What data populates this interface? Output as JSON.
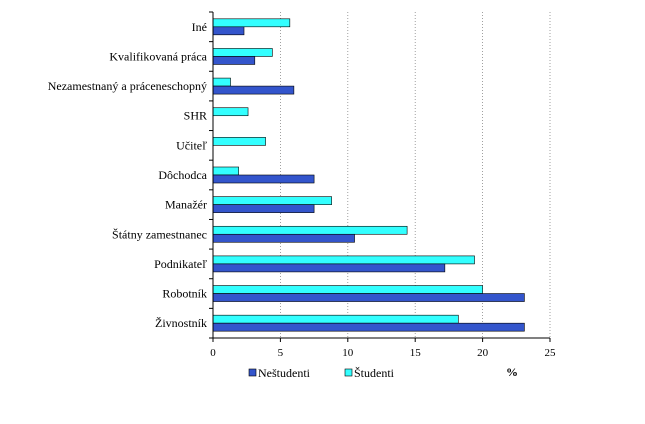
{
  "chart_data": {
    "type": "bar",
    "orientation": "horizontal",
    "categories": [
      "Iné",
      "Kvalifikovaná práca",
      "Nezamestnaný a práceneschopný",
      "SHR",
      "Učiteľ",
      "Dôchodca",
      "Manažér",
      "Štátny zamestnanec",
      "Podnikateľ",
      "Robotník",
      "Živnostník"
    ],
    "series": [
      {
        "name": "Neštudenti",
        "color": "#3355cc",
        "values": [
          2.3,
          3.1,
          6.0,
          0,
          0,
          7.5,
          7.5,
          10.5,
          17.2,
          23.1,
          23.1
        ]
      },
      {
        "name": "Študenti",
        "color": "#33ffff",
        "values": [
          5.7,
          4.4,
          1.3,
          2.6,
          3.9,
          1.9,
          8.8,
          14.4,
          19.4,
          20.0,
          18.2
        ]
      }
    ],
    "x_ticks": [
      "0",
      "5",
      "10",
      "15",
      "20",
      "25"
    ],
    "xlim": [
      0,
      25
    ],
    "xlabel": "%",
    "grid": "vertical dotted",
    "legend_position": "bottom"
  }
}
